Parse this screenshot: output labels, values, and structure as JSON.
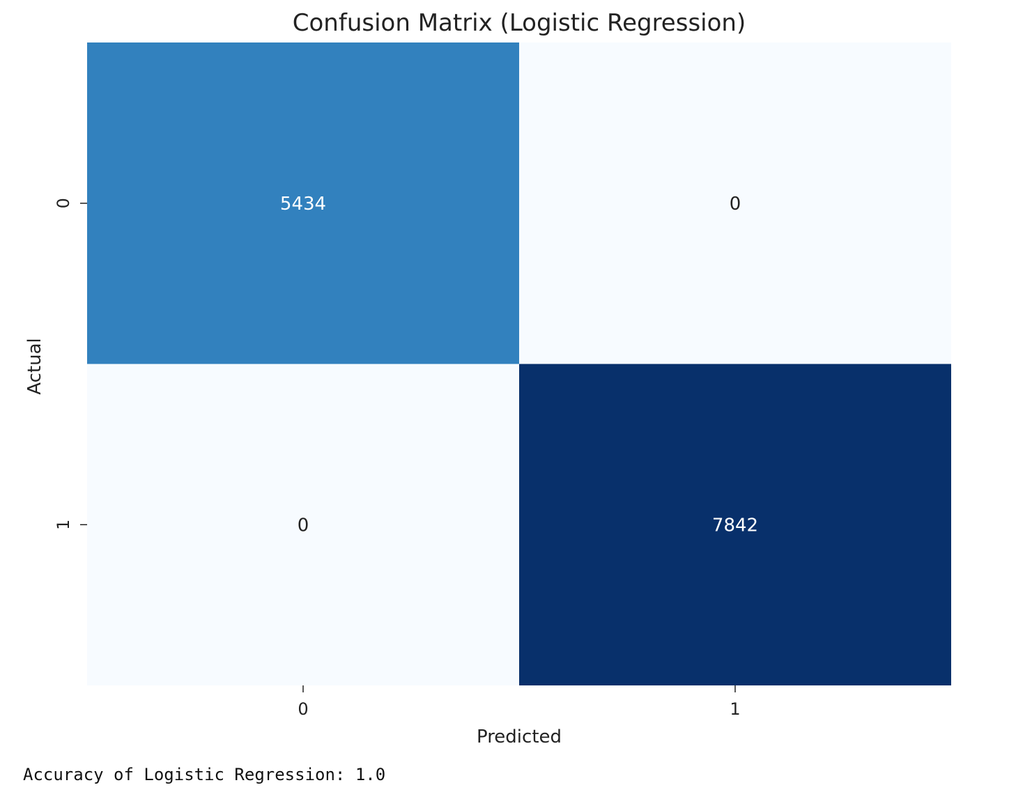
{
  "chart_data": {
    "type": "heatmap",
    "title": "Confusion Matrix (Logistic Regression)",
    "xlabel": "Predicted",
    "ylabel": "Actual",
    "x_categories": [
      "0",
      "1"
    ],
    "y_categories": [
      "0",
      "1"
    ],
    "values": [
      [
        5434,
        0
      ],
      [
        0,
        7842
      ]
    ],
    "colormap": {
      "low": "#f7fbff",
      "mid": "#3080bd",
      "high": "#08306b"
    },
    "annotation_colors": {
      "dark_cell": "#ffffff",
      "light_cell": "#222222"
    },
    "colorbar": false
  },
  "output": {
    "accuracy_text": "Accuracy of Logistic Regression: 1.0"
  }
}
